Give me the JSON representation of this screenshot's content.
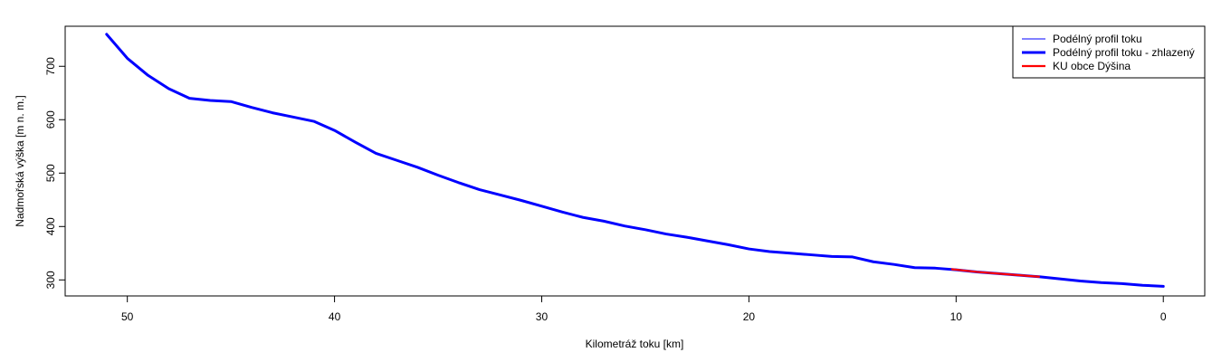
{
  "chart_data": {
    "type": "line",
    "title": "",
    "xlabel": "Kilometráž toku [km]",
    "ylabel": "Nadmořská výška [m n. m.]",
    "xlim": [
      53,
      -2
    ],
    "ylim": [
      270,
      775
    ],
    "x_reversed": true,
    "x_ticks": [
      50,
      40,
      30,
      20,
      10,
      0
    ],
    "y_ticks": [
      300,
      400,
      500,
      600,
      700
    ],
    "grid": false,
    "legend_position": "top-right",
    "series": [
      {
        "name": "Podélný profil toku",
        "color": "#0000ff",
        "style": "thin",
        "x": [
          51,
          50,
          49,
          48,
          47,
          46,
          45,
          44,
          43,
          42,
          41,
          40,
          39,
          38,
          37,
          36,
          35,
          34,
          33,
          32,
          31,
          30,
          29,
          28,
          27,
          26,
          25,
          24,
          23,
          22,
          21,
          20,
          19,
          18,
          17,
          16,
          15,
          14,
          13,
          12,
          11,
          10,
          9,
          8,
          7,
          6,
          5,
          4,
          3,
          2,
          1,
          0
        ],
        "y": [
          760,
          715,
          683,
          658,
          640,
          636,
          634,
          623,
          613,
          605,
          597,
          580,
          558,
          537,
          524,
          511,
          496,
          482,
          469,
          459,
          449,
          438,
          427,
          417,
          410,
          401,
          394,
          386,
          380,
          373,
          366,
          358,
          353,
          350,
          347,
          344,
          343,
          334,
          329,
          323,
          322,
          319,
          315,
          312,
          309,
          306,
          302,
          298,
          295,
          293,
          290,
          288
        ]
      },
      {
        "name": "Podélný profil toku  - zhlazený",
        "color": "#0000ff",
        "style": "thick",
        "x": [
          51,
          50,
          49,
          48,
          47,
          46,
          45,
          44,
          43,
          42,
          41,
          40,
          39,
          38,
          37,
          36,
          35,
          34,
          33,
          32,
          31,
          30,
          29,
          28,
          27,
          26,
          25,
          24,
          23,
          22,
          21,
          20,
          19,
          18,
          17,
          16,
          15,
          14,
          13,
          12,
          11,
          10,
          9,
          8,
          7,
          6,
          5,
          4,
          3,
          2,
          1,
          0
        ],
        "y": [
          760,
          715,
          683,
          658,
          640,
          636,
          634,
          623,
          613,
          605,
          597,
          580,
          558,
          537,
          524,
          511,
          496,
          482,
          469,
          459,
          449,
          438,
          427,
          417,
          410,
          401,
          394,
          386,
          380,
          373,
          366,
          358,
          353,
          350,
          347,
          344,
          343,
          334,
          329,
          323,
          322,
          319,
          315,
          312,
          309,
          306,
          302,
          298,
          295,
          293,
          290,
          288
        ]
      },
      {
        "name": "KU obce Dýšina",
        "color": "#ff0000",
        "style": "medium",
        "x": [
          10.2,
          9,
          8,
          7,
          6
        ],
        "y": [
          320,
          315,
          312,
          309,
          306
        ]
      }
    ]
  }
}
